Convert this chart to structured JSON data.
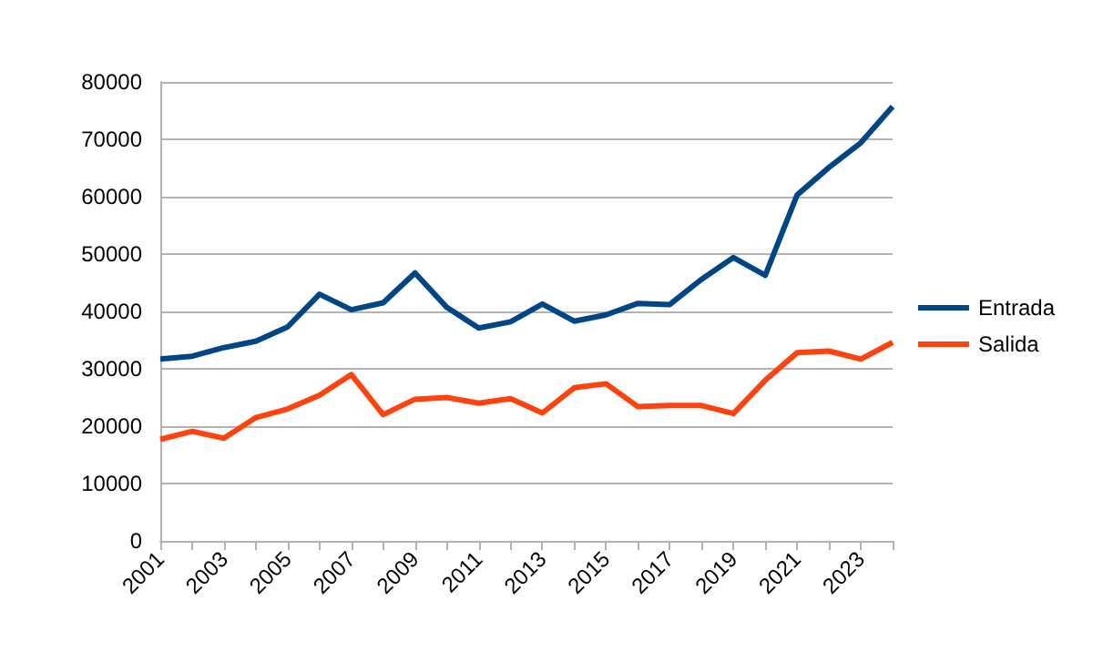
{
  "chart_data": {
    "type": "line",
    "categories": [
      "2001",
      null,
      "2003",
      null,
      "2005",
      null,
      "2007",
      null,
      "2009",
      null,
      "2011",
      null,
      "2013",
      null,
      "2015",
      null,
      "2017",
      null,
      "2019",
      null,
      "2021",
      null,
      "2023",
      null
    ],
    "series": [
      {
        "name": "Entrada",
        "color": "#004586",
        "values": [
          31700,
          32200,
          33700,
          34800,
          37300,
          43000,
          40300,
          41500,
          46700,
          40700,
          37100,
          38200,
          41300,
          38300,
          39400,
          41400,
          41200,
          45600,
          49400,
          46300,
          60300,
          65100,
          69400,
          75700
        ]
      },
      {
        "name": "Salida",
        "color": "#ff420e",
        "values": [
          17700,
          19100,
          17900,
          21500,
          23000,
          25400,
          29000,
          22000,
          24700,
          25000,
          24000,
          24800,
          22300,
          26700,
          27400,
          23400,
          23600,
          23600,
          22200,
          28000,
          32800,
          33100,
          31700,
          34600
        ]
      }
    ],
    "ylim": [
      0,
      80000
    ],
    "yticks": [
      0,
      10000,
      20000,
      30000,
      40000,
      50000,
      60000,
      70000,
      80000
    ],
    "grid": "y",
    "legend": "right",
    "marker": "none",
    "line_style": "solid"
  }
}
